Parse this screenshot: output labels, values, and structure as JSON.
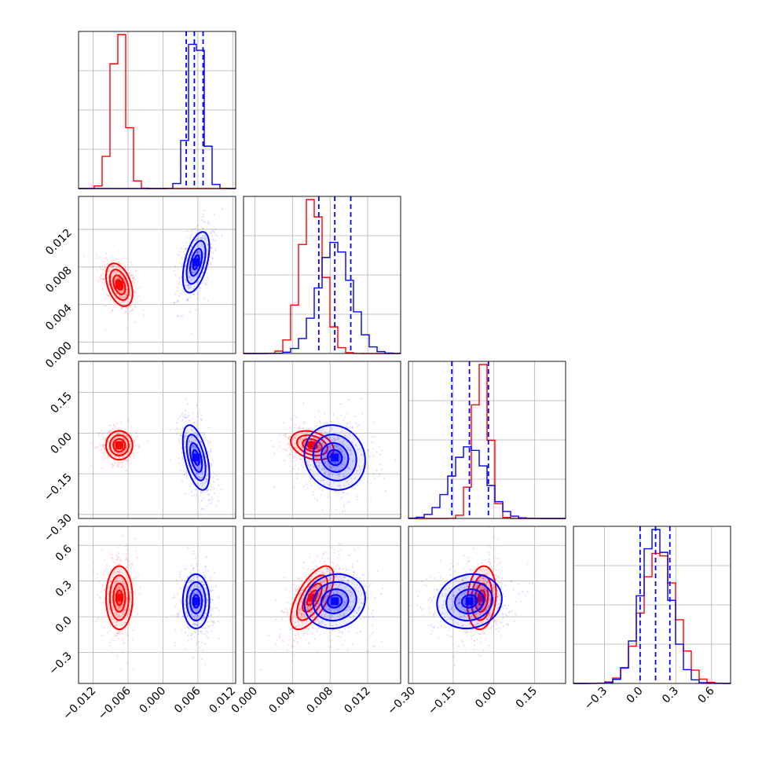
{
  "chart_data": {
    "type": "corner",
    "colors": {
      "series_a": "#ff0000",
      "series_b": "#0000ff"
    },
    "grid": true,
    "parameters": [
      {
        "range": [
          -0.0145,
          0.0125
        ]
      },
      {
        "range": [
          -0.0012,
          0.0155
        ]
      },
      {
        "range": [
          -0.315,
          0.265
        ]
      },
      {
        "range": [
          -0.56,
          0.76
        ]
      }
    ],
    "tick_labels": {
      "p1_y": [
        "0.012",
        "0.008",
        "0.004",
        "0.000"
      ],
      "p2_y": [
        "0.15",
        "0.00",
        "−0.15",
        "−0.30"
      ],
      "p3_y": [
        "0.6",
        "0.3",
        "0.0",
        "−0.3"
      ],
      "p0_x": [
        "−0.012",
        "−0.006",
        "0.000",
        "0.006",
        "0.012"
      ],
      "p1_x": [
        "0.000",
        "0.004",
        "0.008",
        "0.012"
      ],
      "p2_x": [
        "−0.30",
        "−0.15",
        "0.00",
        "0.15"
      ],
      "p3_x": [
        "−0.3",
        "0.0",
        "0.3",
        "0.6"
      ]
    },
    "tick_values": {
      "p0": [
        -0.012,
        -0.006,
        0.0,
        0.006,
        0.012
      ],
      "p1": [
        0.0,
        0.004,
        0.008,
        0.012
      ],
      "p2": [
        -0.3,
        -0.15,
        0.0,
        0.15
      ],
      "p3": [
        -0.3,
        0.0,
        0.3,
        0.6
      ]
    },
    "series": [
      {
        "color": "#ff0000",
        "means": [
          -0.0075,
          0.0061,
          -0.045,
          0.16
        ],
        "sds": [
          0.0012,
          0.0012,
          0.028,
          0.14
        ],
        "corr": {
          "0_1": -0.4,
          "0_2": 0.0,
          "0_3": 0.0,
          "1_2": -0.3,
          "1_3": 0.65,
          "2_3": 0.15
        }
      },
      {
        "color": "#0000ff",
        "means": [
          0.0057,
          0.0085,
          -0.09,
          0.13
        ],
        "sds": [
          0.0012,
          0.0017,
          0.063,
          0.12
        ],
        "corr": {
          "0_1": 0.5,
          "0_2": -0.5,
          "0_3": 0.0,
          "1_2": -0.1,
          "1_3": 0.1,
          "2_3": 0.1
        }
      }
    ],
    "quantile_lines": {
      "color": "#0000ff",
      "p0": [
        0.004,
        0.0054,
        0.0069
      ],
      "p1": [
        0.0068,
        0.0085,
        0.0102
      ],
      "p2": [
        -0.155,
        -0.09,
        -0.02
      ],
      "p3": [
        0.0,
        0.13,
        0.25
      ]
    }
  }
}
